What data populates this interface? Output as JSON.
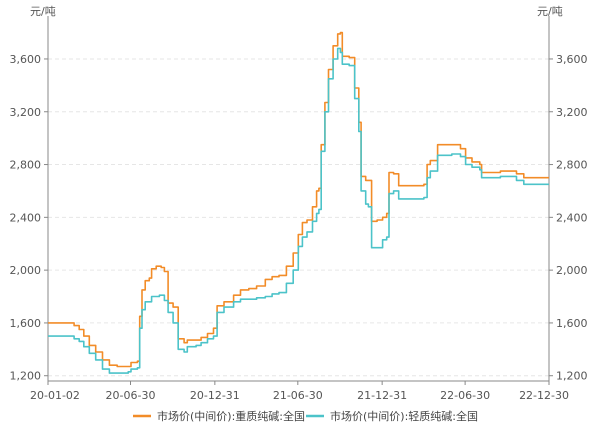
{
  "chart_data": {
    "type": "line",
    "title": "",
    "xlabel": "",
    "unit_left": "元/吨",
    "unit_right": "元/吨",
    "ylim": [
      1160,
      3880
    ],
    "y_ticks": [
      1200,
      1600,
      2000,
      2400,
      2800,
      3200,
      3600
    ],
    "y_tick_labels": [
      "1,200",
      "1,600",
      "2,000",
      "2,400",
      "2,800",
      "3,200",
      "3,600"
    ],
    "x_range": [
      "2020-01-02",
      "2022-12-30"
    ],
    "x_ticks": [
      "2020-01-02",
      "2020-06-30",
      "2020-12-31",
      "2021-06-30",
      "2021-12-31",
      "2022-06-30",
      "2022-12-30"
    ],
    "x_tick_labels": [
      "20-01-02",
      "20-06-30",
      "20-12-31",
      "21-06-30",
      "21-12-31",
      "22-06-30",
      "22-12-30"
    ],
    "grid": true,
    "legend_position": "bottom",
    "series": [
      {
        "name": "市场价(中间价):重质纯碱:全国",
        "color": "#f28c28",
        "points": [
          [
            "2020-01-02",
            1600
          ],
          [
            "2020-02-20",
            1600
          ],
          [
            "2020-02-28",
            1580
          ],
          [
            "2020-03-10",
            1550
          ],
          [
            "2020-03-20",
            1500
          ],
          [
            "2020-04-01",
            1430
          ],
          [
            "2020-04-15",
            1380
          ],
          [
            "2020-04-30",
            1320
          ],
          [
            "2020-05-15",
            1280
          ],
          [
            "2020-06-01",
            1270
          ],
          [
            "2020-06-25",
            1270
          ],
          [
            "2020-07-01",
            1300
          ],
          [
            "2020-07-15",
            1310
          ],
          [
            "2020-07-20",
            1650
          ],
          [
            "2020-07-25",
            1850
          ],
          [
            "2020-08-01",
            1920
          ],
          [
            "2020-08-10",
            1940
          ],
          [
            "2020-08-15",
            2010
          ],
          [
            "2020-08-25",
            2030
          ],
          [
            "2020-09-05",
            2020
          ],
          [
            "2020-09-12",
            1990
          ],
          [
            "2020-09-20",
            1750
          ],
          [
            "2020-10-01",
            1720
          ],
          [
            "2020-10-12",
            1480
          ],
          [
            "2020-10-25",
            1450
          ],
          [
            "2020-11-01",
            1470
          ],
          [
            "2020-11-20",
            1470
          ],
          [
            "2020-12-01",
            1490
          ],
          [
            "2020-12-15",
            1520
          ],
          [
            "2020-12-28",
            1560
          ],
          [
            "2021-01-05",
            1730
          ],
          [
            "2021-01-20",
            1760
          ],
          [
            "2021-02-10",
            1810
          ],
          [
            "2021-02-25",
            1850
          ],
          [
            "2021-03-15",
            1860
          ],
          [
            "2021-04-01",
            1880
          ],
          [
            "2021-04-20",
            1930
          ],
          [
            "2021-05-05",
            1950
          ],
          [
            "2021-05-20",
            1960
          ],
          [
            "2021-06-05",
            2030
          ],
          [
            "2021-06-20",
            2130
          ],
          [
            "2021-07-01",
            2270
          ],
          [
            "2021-07-10",
            2360
          ],
          [
            "2021-07-20",
            2380
          ],
          [
            "2021-08-01",
            2480
          ],
          [
            "2021-08-10",
            2600
          ],
          [
            "2021-08-15",
            2620
          ],
          [
            "2021-08-20",
            2950
          ],
          [
            "2021-08-28",
            3270
          ],
          [
            "2021-09-05",
            3520
          ],
          [
            "2021-09-15",
            3700
          ],
          [
            "2021-09-25",
            3790
          ],
          [
            "2021-10-01",
            3800
          ],
          [
            "2021-10-05",
            3620
          ],
          [
            "2021-10-20",
            3610
          ],
          [
            "2021-11-01",
            3380
          ],
          [
            "2021-11-10",
            3120
          ],
          [
            "2021-11-15",
            2710
          ],
          [
            "2021-11-25",
            2680
          ],
          [
            "2021-12-01",
            2680
          ],
          [
            "2021-12-08",
            2370
          ],
          [
            "2021-12-20",
            2380
          ],
          [
            "2022-01-01",
            2400
          ],
          [
            "2022-01-10",
            2430
          ],
          [
            "2022-01-15",
            2740
          ],
          [
            "2022-01-25",
            2730
          ],
          [
            "2022-02-05",
            2640
          ],
          [
            "2022-03-01",
            2640
          ],
          [
            "2022-04-01",
            2650
          ],
          [
            "2022-04-08",
            2800
          ],
          [
            "2022-04-15",
            2830
          ],
          [
            "2022-05-01",
            2950
          ],
          [
            "2022-06-01",
            2950
          ],
          [
            "2022-06-20",
            2920
          ],
          [
            "2022-07-01",
            2850
          ],
          [
            "2022-07-15",
            2820
          ],
          [
            "2022-08-01",
            2800
          ],
          [
            "2022-08-05",
            2740
          ],
          [
            "2022-09-01",
            2740
          ],
          [
            "2022-09-15",
            2750
          ],
          [
            "2022-10-20",
            2730
          ],
          [
            "2022-11-05",
            2700
          ],
          [
            "2022-12-30",
            2700
          ]
        ]
      },
      {
        "name": "市场价(中间价):轻质纯碱:全国",
        "color": "#4cc3c9",
        "points": [
          [
            "2020-01-02",
            1500
          ],
          [
            "2020-02-20",
            1500
          ],
          [
            "2020-02-28",
            1480
          ],
          [
            "2020-03-10",
            1460
          ],
          [
            "2020-03-20",
            1420
          ],
          [
            "2020-04-01",
            1370
          ],
          [
            "2020-04-15",
            1320
          ],
          [
            "2020-04-30",
            1250
          ],
          [
            "2020-05-15",
            1220
          ],
          [
            "2020-06-01",
            1220
          ],
          [
            "2020-06-25",
            1230
          ],
          [
            "2020-07-01",
            1250
          ],
          [
            "2020-07-15",
            1260
          ],
          [
            "2020-07-20",
            1560
          ],
          [
            "2020-07-25",
            1700
          ],
          [
            "2020-08-01",
            1760
          ],
          [
            "2020-08-15",
            1800
          ],
          [
            "2020-09-01",
            1810
          ],
          [
            "2020-09-12",
            1770
          ],
          [
            "2020-09-20",
            1680
          ],
          [
            "2020-10-01",
            1600
          ],
          [
            "2020-10-12",
            1400
          ],
          [
            "2020-10-25",
            1380
          ],
          [
            "2020-11-01",
            1420
          ],
          [
            "2020-11-20",
            1430
          ],
          [
            "2020-12-01",
            1450
          ],
          [
            "2020-12-15",
            1480
          ],
          [
            "2020-12-28",
            1500
          ],
          [
            "2021-01-05",
            1680
          ],
          [
            "2021-01-20",
            1720
          ],
          [
            "2021-02-10",
            1760
          ],
          [
            "2021-02-25",
            1780
          ],
          [
            "2021-03-15",
            1780
          ],
          [
            "2021-04-01",
            1790
          ],
          [
            "2021-04-20",
            1800
          ],
          [
            "2021-05-05",
            1820
          ],
          [
            "2021-05-20",
            1830
          ],
          [
            "2021-06-05",
            1900
          ],
          [
            "2021-06-20",
            2000
          ],
          [
            "2021-07-01",
            2180
          ],
          [
            "2021-07-10",
            2250
          ],
          [
            "2021-07-20",
            2290
          ],
          [
            "2021-08-01",
            2370
          ],
          [
            "2021-08-10",
            2430
          ],
          [
            "2021-08-15",
            2460
          ],
          [
            "2021-08-20",
            2900
          ],
          [
            "2021-08-28",
            3200
          ],
          [
            "2021-09-05",
            3450
          ],
          [
            "2021-09-15",
            3600
          ],
          [
            "2021-09-25",
            3680
          ],
          [
            "2021-10-01",
            3650
          ],
          [
            "2021-10-05",
            3560
          ],
          [
            "2021-10-20",
            3550
          ],
          [
            "2021-11-01",
            3300
          ],
          [
            "2021-11-10",
            3050
          ],
          [
            "2021-11-15",
            2600
          ],
          [
            "2021-11-25",
            2500
          ],
          [
            "2021-12-01",
            2480
          ],
          [
            "2021-12-08",
            2170
          ],
          [
            "2021-12-20",
            2170
          ],
          [
            "2022-01-01",
            2230
          ],
          [
            "2022-01-10",
            2250
          ],
          [
            "2022-01-15",
            2580
          ],
          [
            "2022-01-25",
            2600
          ],
          [
            "2022-02-05",
            2540
          ],
          [
            "2022-03-01",
            2540
          ],
          [
            "2022-04-01",
            2550
          ],
          [
            "2022-04-08",
            2700
          ],
          [
            "2022-04-15",
            2750
          ],
          [
            "2022-05-01",
            2870
          ],
          [
            "2022-06-01",
            2880
          ],
          [
            "2022-06-20",
            2860
          ],
          [
            "2022-07-01",
            2800
          ],
          [
            "2022-07-15",
            2780
          ],
          [
            "2022-08-01",
            2760
          ],
          [
            "2022-08-05",
            2700
          ],
          [
            "2022-09-01",
            2700
          ],
          [
            "2022-09-15",
            2710
          ],
          [
            "2022-10-20",
            2680
          ],
          [
            "2022-11-05",
            2650
          ],
          [
            "2022-12-30",
            2650
          ]
        ]
      }
    ]
  }
}
